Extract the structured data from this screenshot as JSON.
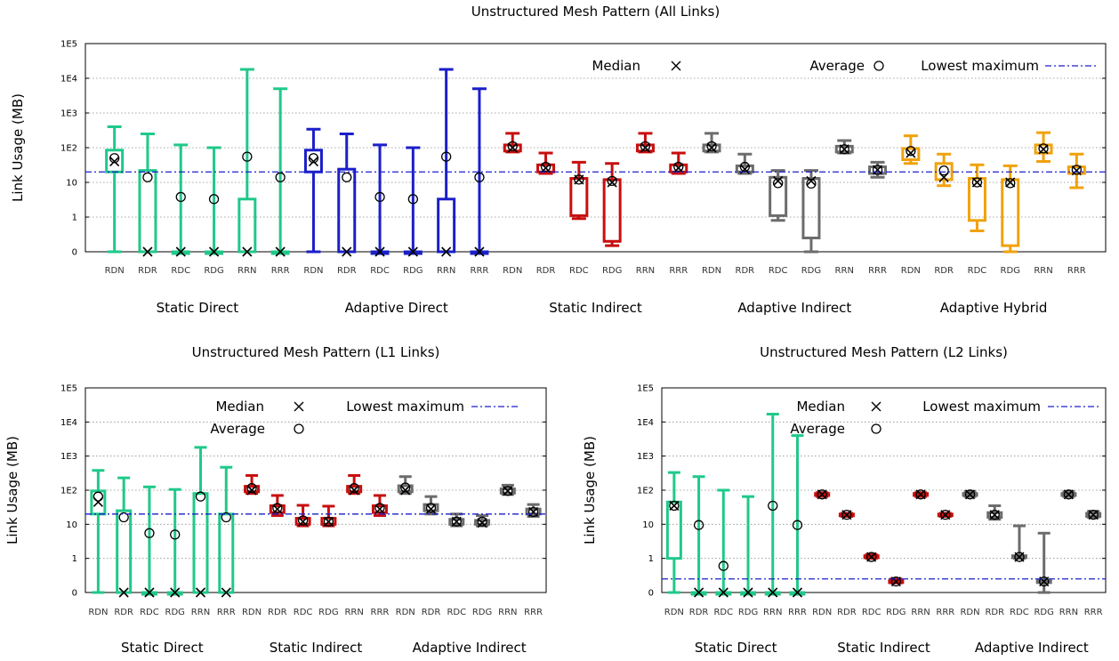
{
  "chart_data": [
    {
      "type": "box",
      "title": "Unstructured Mesh Pattern (All Links)",
      "ylabel": "Link Usage (MB)",
      "yscale": "log",
      "ytick_labels": [
        "0",
        "1",
        "10",
        "1E2",
        "1E3",
        "1E4",
        "1E5"
      ],
      "grid": true,
      "legend": {
        "median": "Median",
        "average": "Average",
        "lowest_max": "Lowest maximum"
      },
      "lowest_max": 20,
      "categories": [
        "RDN",
        "RDR",
        "RDC",
        "RDG",
        "RRN",
        "RRR"
      ],
      "groups": [
        {
          "label": "Static Direct",
          "color": "#1fc98a",
          "boxes": [
            {
              "min": 0.1,
              "q1": 20,
              "median": 40,
              "q3": 85,
              "max": 400,
              "avg": 50
            },
            {
              "min": 0.1,
              "q1": 0.1,
              "median": 0.1,
              "q3": 22,
              "max": 250,
              "avg": 14
            },
            {
              "min": 0.1,
              "q1": 0.1,
              "median": 0.1,
              "q3": 0.1,
              "max": 120,
              "avg": 3.8
            },
            {
              "min": 0.1,
              "q1": 0.1,
              "median": 0.1,
              "q3": 0.1,
              "max": 100,
              "avg": 3.3
            },
            {
              "min": 0.1,
              "q1": 0.1,
              "median": 0.1,
              "q3": 3.3,
              "max": 18000,
              "avg": 55
            },
            {
              "min": 0.1,
              "q1": 0.1,
              "median": 0.1,
              "q3": 0.1,
              "max": 5000,
              "avg": 14
            }
          ]
        },
        {
          "label": "Adaptive Direct",
          "color": "#1b1fc9",
          "boxes": [
            {
              "min": 0.1,
              "q1": 20,
              "median": 40,
              "q3": 85,
              "max": 340,
              "avg": 50
            },
            {
              "min": 0.1,
              "q1": 0.1,
              "median": 0.1,
              "q3": 24,
              "max": 250,
              "avg": 14
            },
            {
              "min": 0.1,
              "q1": 0.1,
              "median": 0.1,
              "q3": 0.1,
              "max": 120,
              "avg": 3.8
            },
            {
              "min": 0.1,
              "q1": 0.1,
              "median": 0.1,
              "q3": 0.1,
              "max": 100,
              "avg": 3.3
            },
            {
              "min": 0.1,
              "q1": 0.1,
              "median": 0.1,
              "q3": 3.3,
              "max": 18000,
              "avg": 55
            },
            {
              "min": 0.1,
              "q1": 0.1,
              "median": 0.1,
              "q3": 0.1,
              "max": 5000,
              "avg": 14
            }
          ]
        },
        {
          "label": "Static Indirect",
          "color": "#c80e0e",
          "boxes": [
            {
              "min": 75,
              "q1": 80,
              "median": 100,
              "q3": 120,
              "max": 260,
              "avg": 110
            },
            {
              "min": 18,
              "q1": 20,
              "median": 26,
              "q3": 32,
              "max": 70,
              "avg": 28
            },
            {
              "min": 0.9,
              "q1": 1.1,
              "median": 12,
              "q3": 13,
              "max": 38,
              "avg": 12
            },
            {
              "min": 0.15,
              "q1": 0.2,
              "median": 10,
              "q3": 12,
              "max": 35,
              "avg": 11
            },
            {
              "min": 75,
              "q1": 80,
              "median": 100,
              "q3": 120,
              "max": 260,
              "avg": 110
            },
            {
              "min": 18,
              "q1": 20,
              "median": 26,
              "q3": 32,
              "max": 70,
              "avg": 28
            }
          ]
        },
        {
          "label": "Adaptive Indirect",
          "color": "#6c6c6c",
          "boxes": [
            {
              "min": 75,
              "q1": 80,
              "median": 100,
              "q3": 120,
              "max": 260,
              "avg": 110
            },
            {
              "min": 18,
              "q1": 20,
              "median": 24,
              "q3": 30,
              "max": 65,
              "avg": 28
            },
            {
              "min": 0.8,
              "q1": 1.1,
              "median": 11,
              "q3": 14,
              "max": 22,
              "avg": 9.5
            },
            {
              "min": 0.1,
              "q1": 0.25,
              "median": 11,
              "q3": 13,
              "max": 22,
              "avg": 9.2
            },
            {
              "min": 70,
              "q1": 75,
              "median": 90,
              "q3": 110,
              "max": 160,
              "avg": 90
            },
            {
              "min": 14,
              "q1": 18,
              "median": 23,
              "q3": 28,
              "max": 38,
              "avg": 23
            }
          ]
        },
        {
          "label": "Adaptive Hybrid",
          "color": "#f0a20c",
          "boxes": [
            {
              "min": 35,
              "q1": 45,
              "median": 70,
              "q3": 95,
              "max": 220,
              "avg": 80
            },
            {
              "min": 8,
              "q1": 12,
              "median": 14,
              "q3": 35,
              "max": 65,
              "avg": 22
            },
            {
              "min": 0.4,
              "q1": 0.8,
              "median": 10,
              "q3": 13,
              "max": 32,
              "avg": 10
            },
            {
              "min": 0.1,
              "q1": 0.15,
              "median": 10,
              "q3": 12,
              "max": 30,
              "avg": 9.5
            },
            {
              "min": 40,
              "q1": 70,
              "median": 90,
              "q3": 120,
              "max": 270,
              "avg": 95
            },
            {
              "min": 7,
              "q1": 18,
              "median": 22,
              "q3": 28,
              "max": 65,
              "avg": 23
            }
          ]
        }
      ]
    },
    {
      "type": "box",
      "title": "Unstructured Mesh Pattern (L1 Links)",
      "ylabel": "Link Usage (MB)",
      "yscale": "log",
      "ytick_labels": [
        "0",
        "1",
        "10",
        "1E2",
        "1E3",
        "1E4",
        "1E5"
      ],
      "grid": true,
      "legend": {
        "median": "Median",
        "average": "Average",
        "lowest_max": "Lowest maximum"
      },
      "lowest_max": 20,
      "categories": [
        "RDN",
        "RDR",
        "RDC",
        "RDG",
        "RRN",
        "RRR"
      ],
      "groups": [
        {
          "label": "Static Direct",
          "color": "#1fc98a",
          "boxes": [
            {
              "min": 0.1,
              "q1": 20,
              "median": 45,
              "q3": 95,
              "max": 380,
              "avg": 65
            },
            {
              "min": 0.1,
              "q1": 0.1,
              "median": 0.1,
              "q3": 25,
              "max": 230,
              "avg": 16
            },
            {
              "min": 0.1,
              "q1": 0.1,
              "median": 0.1,
              "q3": 0.1,
              "max": 125,
              "avg": 5.5
            },
            {
              "min": 0.1,
              "q1": 0.1,
              "median": 0.1,
              "q3": 0.1,
              "max": 105,
              "avg": 5
            },
            {
              "min": 0.1,
              "q1": 0.1,
              "median": 0.1,
              "q3": 80,
              "max": 1800,
              "avg": 65
            },
            {
              "min": 0.1,
              "q1": 0.1,
              "median": 0.1,
              "q3": 20,
              "max": 470,
              "avg": 16
            }
          ]
        },
        {
          "label": "Static Indirect",
          "color": "#c80e0e",
          "boxes": [
            {
              "min": 80,
              "q1": 90,
              "median": 100,
              "q3": 130,
              "max": 270,
              "avg": 115
            },
            {
              "min": 18,
              "q1": 22,
              "median": 28,
              "q3": 35,
              "max": 70,
              "avg": 30
            },
            {
              "min": 9,
              "q1": 10,
              "median": 12,
              "q3": 15,
              "max": 36,
              "avg": 13
            },
            {
              "min": 9,
              "q1": 10,
              "median": 12,
              "q3": 15,
              "max": 34,
              "avg": 12
            },
            {
              "min": 80,
              "q1": 90,
              "median": 100,
              "q3": 130,
              "max": 270,
              "avg": 115
            },
            {
              "min": 18,
              "q1": 22,
              "median": 28,
              "q3": 35,
              "max": 70,
              "avg": 30
            }
          ]
        },
        {
          "label": "Adaptive Indirect",
          "color": "#6c6c6c",
          "boxes": [
            {
              "min": 80,
              "q1": 90,
              "median": 100,
              "q3": 135,
              "max": 250,
              "avg": 120
            },
            {
              "min": 20,
              "q1": 25,
              "median": 28,
              "q3": 38,
              "max": 65,
              "avg": 30
            },
            {
              "min": 9,
              "q1": 10,
              "median": 12,
              "q3": 14,
              "max": 20,
              "avg": 12
            },
            {
              "min": 9,
              "q1": 10,
              "median": 11,
              "q3": 13,
              "max": 18,
              "avg": 12
            },
            {
              "min": 75,
              "q1": 82,
              "median": 95,
              "q3": 110,
              "max": 140,
              "avg": 95
            },
            {
              "min": 17,
              "q1": 20,
              "median": 23,
              "q3": 28,
              "max": 38,
              "avg": 23
            }
          ]
        }
      ]
    },
    {
      "type": "box",
      "title": "Unstructured Mesh Pattern (L2 Links)",
      "ylabel": "Link Usage (MB)",
      "yscale": "log",
      "ytick_labels": [
        "0",
        "1",
        "10",
        "1E2",
        "1E3",
        "1E4",
        "1E5"
      ],
      "grid": true,
      "legend": {
        "median": "Median",
        "average": "Average",
        "lowest_max": "Lowest maximum"
      },
      "lowest_max": 0.25,
      "categories": [
        "RDN",
        "RDR",
        "RDC",
        "RDG",
        "RRN",
        "RRR"
      ],
      "groups": [
        {
          "label": "Static Direct",
          "color": "#1fc98a",
          "boxes": [
            {
              "min": 0.1,
              "q1": 1,
              "median": 35,
              "q3": 45,
              "max": 330,
              "avg": 35
            },
            {
              "min": 0.1,
              "q1": 0.1,
              "median": 0.1,
              "q3": 0.1,
              "max": 250,
              "avg": 9.5
            },
            {
              "min": 0.1,
              "q1": 0.1,
              "median": 0.1,
              "q3": 0.1,
              "max": 100,
              "avg": 0.6
            },
            {
              "min": 0.1,
              "q1": 0.1,
              "median": 0.1,
              "q3": 0.1,
              "max": 65,
              "avg": null
            },
            {
              "min": 0.1,
              "q1": 0.1,
              "median": 0.1,
              "q3": 0.1,
              "max": 17000,
              "avg": 35
            },
            {
              "min": 0.1,
              "q1": 0.1,
              "median": 0.1,
              "q3": 0.1,
              "max": 4000,
              "avg": 9.5
            }
          ]
        },
        {
          "label": "Static Indirect",
          "color": "#c80e0e",
          "boxes": [
            {
              "min": 65,
              "q1": 70,
              "median": 75,
              "q3": 80,
              "max": 85,
              "avg": 75
            },
            {
              "min": 17,
              "q1": 18,
              "median": 19,
              "q3": 20,
              "max": 21,
              "avg": 19
            },
            {
              "min": 1,
              "q1": 1.05,
              "median": 1.1,
              "q3": 1.2,
              "max": 1.3,
              "avg": 1.1
            },
            {
              "min": 0.19,
              "q1": 0.2,
              "median": 0.21,
              "q3": 0.22,
              "max": 0.25,
              "avg": 0.21
            },
            {
              "min": 65,
              "q1": 70,
              "median": 75,
              "q3": 80,
              "max": 85,
              "avg": 75
            },
            {
              "min": 17,
              "q1": 18,
              "median": 19,
              "q3": 20,
              "max": 21,
              "avg": 19
            }
          ]
        },
        {
          "label": "Adaptive Indirect",
          "color": "#6c6c6c",
          "boxes": [
            {
              "min": 65,
              "q1": 70,
              "median": 75,
              "q3": 80,
              "max": 90,
              "avg": 75
            },
            {
              "min": 14,
              "q1": 16,
              "median": 19,
              "q3": 22,
              "max": 35,
              "avg": 19
            },
            {
              "min": 1,
              "q1": 1.05,
              "median": 1.1,
              "q3": 1.2,
              "max": 9,
              "avg": 1.1
            },
            {
              "min": 0.1,
              "q1": 0.2,
              "median": 0.21,
              "q3": 0.22,
              "max": 5.5,
              "avg": 0.21
            },
            {
              "min": 65,
              "q1": 70,
              "median": 75,
              "q3": 80,
              "max": 90,
              "avg": 75
            },
            {
              "min": 16,
              "q1": 17,
              "median": 19,
              "q3": 21,
              "max": 24,
              "avg": 19
            }
          ]
        }
      ]
    }
  ]
}
